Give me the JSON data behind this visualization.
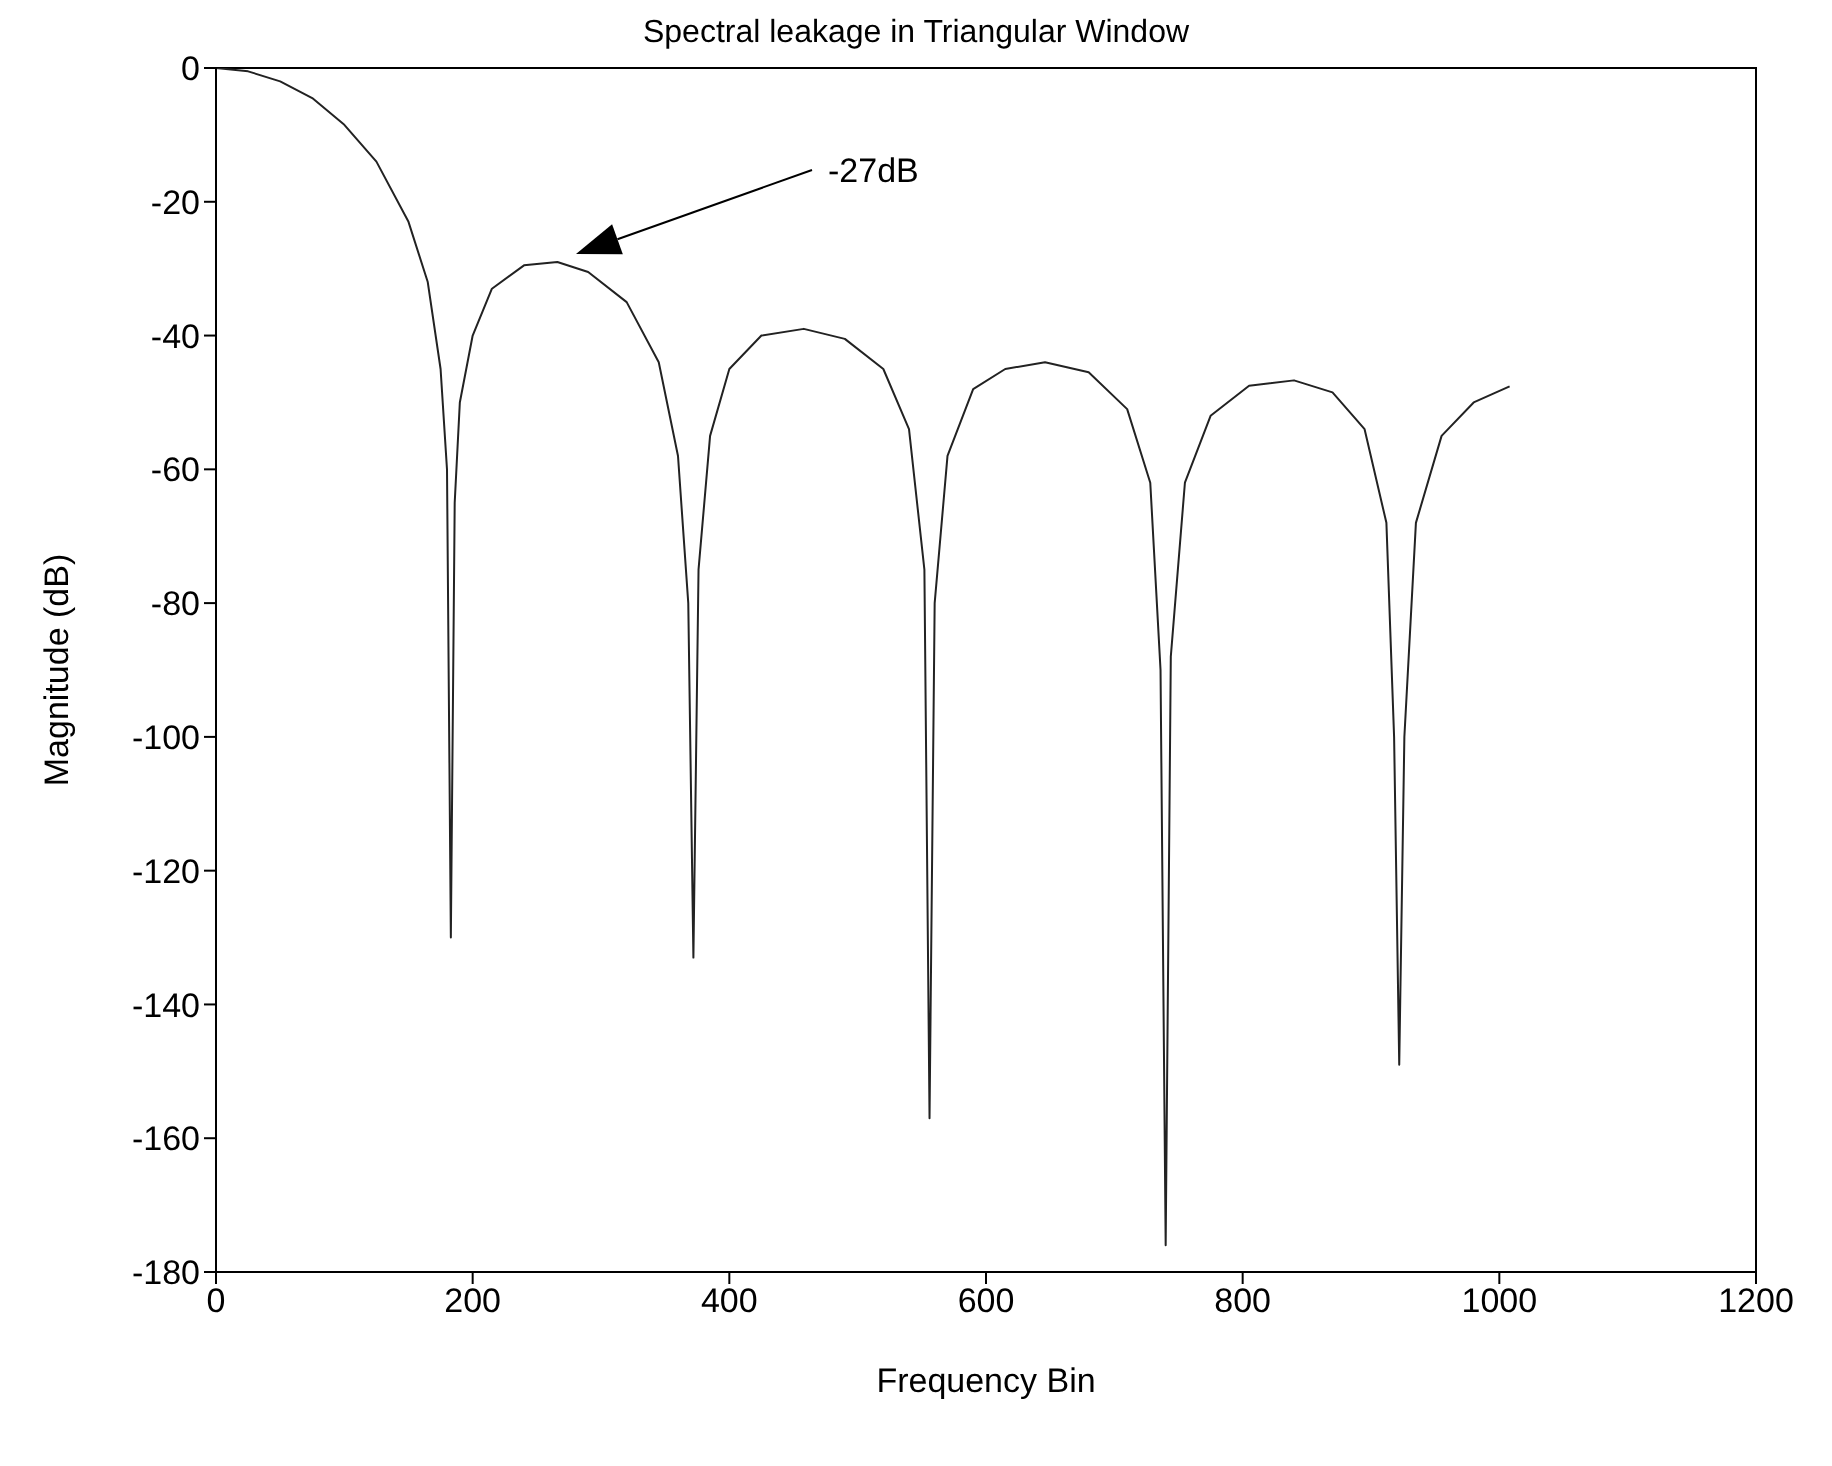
{
  "chart_data": {
    "type": "line",
    "title": "Spectral leakage in Triangular Window",
    "xlabel": "Frequency Bin",
    "ylabel": "Magnitude (dB)",
    "x": [
      0,
      25,
      50,
      75,
      100,
      125,
      150,
      165,
      175,
      180,
      183,
      186,
      190,
      200,
      215,
      240,
      266,
      290,
      320,
      345,
      360,
      368,
      372,
      376,
      385,
      400,
      425,
      458,
      490,
      520,
      540,
      552,
      556,
      560,
      570,
      590,
      615,
      646,
      680,
      710,
      728,
      736,
      740,
      744,
      755,
      775,
      805,
      840,
      870,
      895,
      912,
      918,
      922,
      926,
      935,
      955,
      980,
      1008
    ],
    "series": [
      {
        "color": "#222222",
        "values": [
          0,
          -0.5,
          -2,
          -4.5,
          -8.5,
          -14,
          -23,
          -32,
          -45,
          -60,
          -130,
          -65,
          -50,
          -40,
          -33,
          -29.5,
          -29,
          -30.5,
          -35,
          -44,
          -58,
          -80,
          -133,
          -75,
          -55,
          -45,
          -40,
          -39,
          -40.5,
          -45,
          -54,
          -75,
          -157,
          -80,
          -58,
          -48,
          -45,
          -44,
          -45.5,
          -51,
          -62,
          -90,
          -176,
          -88,
          -62,
          -52,
          -47.5,
          -46.7,
          -48.5,
          -54,
          -68,
          -100,
          -149,
          -100,
          -68,
          -55,
          -50,
          -47.6
        ]
      }
    ],
    "xlim": [
      0,
      1200
    ],
    "xticks": [
      0,
      200,
      400,
      600,
      800,
      1000,
      1200
    ],
    "ylim": [
      -180,
      0
    ],
    "yticks": [
      -180,
      -160,
      -140,
      -120,
      -100,
      -80,
      -60,
      -40,
      -20,
      0
    ],
    "grid": false,
    "legend": false,
    "marker": "none",
    "line_style": "solid",
    "annotations": [
      "-27dB"
    ]
  }
}
